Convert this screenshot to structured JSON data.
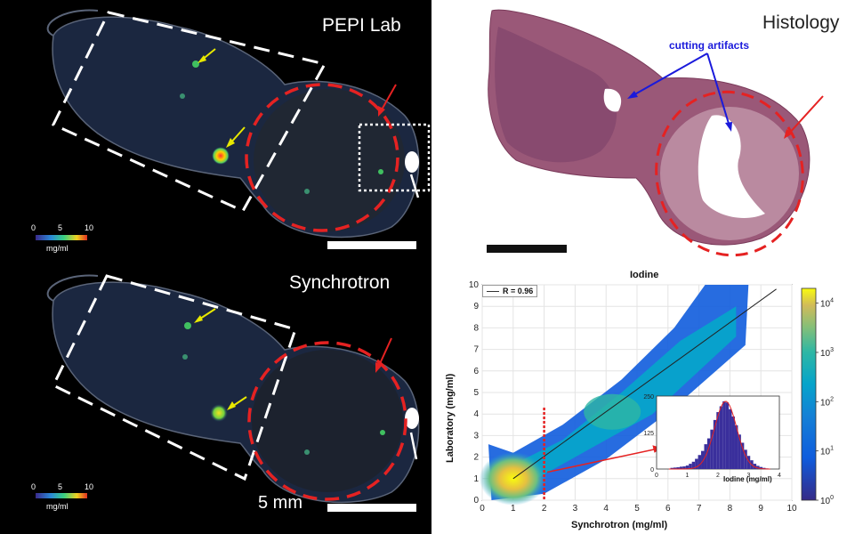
{
  "panels": {
    "top_left": {
      "title": "PEPI Lab",
      "colorbar": {
        "ticks": [
          "0",
          "5",
          "10"
        ],
        "unit": "mg/ml"
      }
    },
    "bottom_left": {
      "title": "Synchrotron",
      "colorbar": {
        "ticks": [
          "0",
          "5",
          "10"
        ],
        "unit": "mg/ml"
      },
      "scale_label": "5 mm"
    },
    "top_right": {
      "title": "Histology",
      "annotation": "cutting artifacts"
    }
  },
  "colors": {
    "annotation_red": "#e52222",
    "arrow_yellow": "#e8e800",
    "annotation_blue": "#1a1adb"
  },
  "chart_data": [
    {
      "type": "heatmap",
      "title": "Iodine",
      "xlabel": "Synchrotron (mg/ml)",
      "ylabel": "Laboratory (mg/ml)",
      "xlim": [
        0,
        10
      ],
      "ylim": [
        0,
        10
      ],
      "x_ticks": [
        "0",
        "1",
        "2",
        "3",
        "4",
        "5",
        "6",
        "7",
        "8",
        "9",
        "10"
      ],
      "y_ticks": [
        "0",
        "1",
        "2",
        "3",
        "4",
        "5",
        "6",
        "7",
        "8",
        "9",
        "10"
      ],
      "grid": true,
      "legend": {
        "label": "R = 0.96",
        "placement": "top-left"
      },
      "fit_line": {
        "x": [
          1,
          9.5
        ],
        "y": [
          1.0,
          9.8
        ]
      },
      "threshold_line_x": 2,
      "colorbar": {
        "scale": "log",
        "ticks": [
          "10^0",
          "10^1",
          "10^2",
          "10^3",
          "10^4"
        ],
        "tick_values": [
          0,
          1,
          2,
          3,
          4
        ]
      }
    },
    {
      "type": "bar",
      "xlabel": "Iodine (mg/ml)",
      "xlim": [
        0,
        4
      ],
      "ylim": [
        0,
        250
      ],
      "x_ticks": [
        "0",
        "1",
        "2",
        "3",
        "4"
      ],
      "y_ticks": [
        "0",
        "125",
        "250"
      ],
      "bins": [
        0.5,
        0.6,
        0.7,
        0.8,
        0.9,
        1.0,
        1.1,
        1.2,
        1.3,
        1.4,
        1.5,
        1.6,
        1.7,
        1.8,
        1.9,
        2.0,
        2.1,
        2.2,
        2.3,
        2.4,
        2.5,
        2.6,
        2.7,
        2.8,
        2.9,
        3.0,
        3.1,
        3.2,
        3.3,
        3.4,
        3.5,
        3.6
      ],
      "values": [
        4,
        5,
        6,
        8,
        9,
        12,
        18,
        25,
        35,
        48,
        62,
        85,
        105,
        135,
        168,
        195,
        215,
        232,
        228,
        205,
        180,
        150,
        118,
        90,
        66,
        45,
        30,
        18,
        11,
        7,
        4,
        2
      ]
    }
  ]
}
